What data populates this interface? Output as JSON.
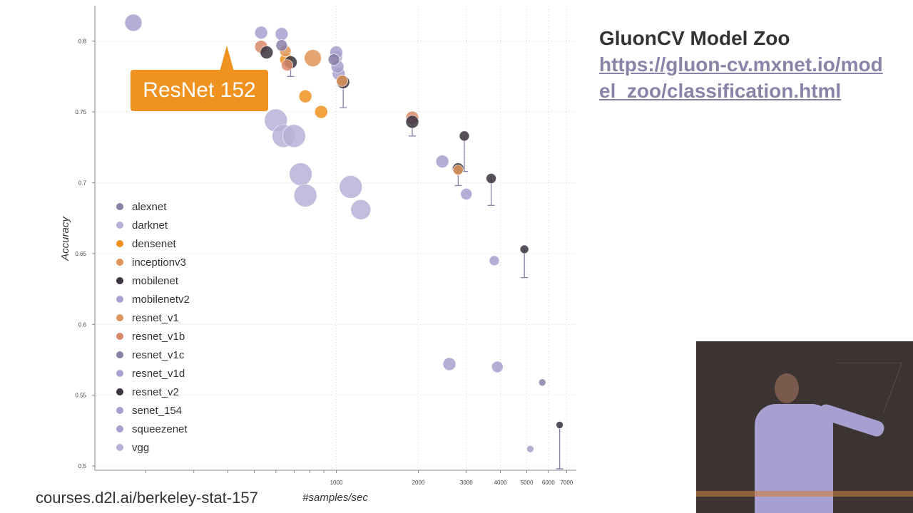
{
  "chart_data": {
    "type": "scatter",
    "title": "",
    "xlabel": "#samples/sec",
    "ylabel": "Accuracy",
    "x_scale": "log",
    "xlim": [
      130,
      7600
    ],
    "ylim": [
      0.497,
      0.825
    ],
    "x_tick_labels": [
      "1000",
      "2000",
      "3000",
      "4000",
      "5000",
      "6000",
      "7000"
    ],
    "x_ticks": [
      1000,
      2000,
      3000,
      4000,
      5000,
      6000,
      7000
    ],
    "y_tick_labels": [
      "0.5",
      "0.55",
      "0.6",
      "0.65",
      "0.7",
      "0.75",
      "0.8"
    ],
    "y_ticks": [
      0.5,
      0.55,
      0.6,
      0.65,
      0.7,
      0.75,
      0.8
    ],
    "grid": true,
    "legend_position": "left",
    "series": [
      {
        "name": "alexnet",
        "color": "#8a7fa8",
        "points": [
          {
            "x": 5700,
            "y": 0.559,
            "size": 5
          }
        ]
      },
      {
        "name": "darknet",
        "color": "#b8b0d6",
        "points": [
          {
            "x": 1000,
            "y": 0.789,
            "size": 9
          }
        ]
      },
      {
        "name": "densenet",
        "color": "#f0921f",
        "points": [
          {
            "x": 655,
            "y": 0.787,
            "size": 9
          },
          {
            "x": 770,
            "y": 0.761,
            "size": 9
          },
          {
            "x": 880,
            "y": 0.75,
            "size": 9
          }
        ]
      },
      {
        "name": "inceptionv3",
        "color": "#e0955a",
        "points": [
          {
            "x": 820,
            "y": 0.788,
            "size": 12
          }
        ]
      },
      {
        "name": "mobilenet",
        "color": "#3a3240",
        "points": [
          {
            "x": 2950,
            "y": 0.733,
            "size": 7
          },
          {
            "x": 3700,
            "y": 0.703,
            "size": 7
          },
          {
            "x": 4900,
            "y": 0.653,
            "size": 6
          },
          {
            "x": 6600,
            "y": 0.529,
            "size": 5
          }
        ]
      },
      {
        "name": "mobilenetv2",
        "color": "#a79fcf",
        "points": [
          {
            "x": 2450,
            "y": 0.715,
            "size": 9
          },
          {
            "x": 3000,
            "y": 0.692,
            "size": 8
          },
          {
            "x": 3800,
            "y": 0.645,
            "size": 7
          },
          {
            "x": 5150,
            "y": 0.512,
            "size": 5
          }
        ]
      },
      {
        "name": "resnet_v1",
        "color": "#e0955a",
        "points": [
          {
            "x": 650,
            "y": 0.793,
            "size": 8
          },
          {
            "x": 1050,
            "y": 0.772,
            "size": 8
          },
          {
            "x": 2800,
            "y": 0.709,
            "size": 7
          }
        ]
      },
      {
        "name": "resnet_v1b",
        "color": "#d98a6a",
        "points": [
          {
            "x": 530,
            "y": 0.796,
            "size": 9
          },
          {
            "x": 1900,
            "y": 0.746,
            "size": 9
          },
          {
            "x": 660,
            "y": 0.783,
            "size": 8
          }
        ]
      },
      {
        "name": "resnet_v1c",
        "color": "#8a7fa8",
        "points": [
          {
            "x": 630,
            "y": 0.797,
            "size": 8
          },
          {
            "x": 980,
            "y": 0.787,
            "size": 8
          }
        ]
      },
      {
        "name": "resnet_v1d",
        "color": "#a79fcf",
        "points": [
          {
            "x": 530,
            "y": 0.806,
            "size": 9
          },
          {
            "x": 630,
            "y": 0.805,
            "size": 9
          },
          {
            "x": 1000,
            "y": 0.792,
            "size": 9
          },
          {
            "x": 1020,
            "y": 0.777,
            "size": 9
          },
          {
            "x": 1010,
            "y": 0.782,
            "size": 9
          }
        ]
      },
      {
        "name": "resnet_v2",
        "color": "#3a3240",
        "points": [
          {
            "x": 555,
            "y": 0.792,
            "size": 9
          },
          {
            "x": 680,
            "y": 0.785,
            "size": 9
          },
          {
            "x": 1060,
            "y": 0.771,
            "size": 9
          },
          {
            "x": 1900,
            "y": 0.743,
            "size": 9
          },
          {
            "x": 2800,
            "y": 0.71,
            "size": 8
          }
        ]
      },
      {
        "name": "senet_154",
        "color": "#a79fcf",
        "points": [
          {
            "x": 180,
            "y": 0.813,
            "size": 12
          }
        ]
      },
      {
        "name": "squeezenet",
        "color": "#a79fcf",
        "points": [
          {
            "x": 2600,
            "y": 0.572,
            "size": 9
          },
          {
            "x": 3900,
            "y": 0.57,
            "size": 8
          }
        ]
      },
      {
        "name": "vgg",
        "color": "#b8b0d6",
        "points": [
          {
            "x": 600,
            "y": 0.744,
            "size": 16
          },
          {
            "x": 640,
            "y": 0.733,
            "size": 16
          },
          {
            "x": 700,
            "y": 0.733,
            "size": 16
          },
          {
            "x": 740,
            "y": 0.706,
            "size": 16
          },
          {
            "x": 770,
            "y": 0.691,
            "size": 16
          },
          {
            "x": 1130,
            "y": 0.697,
            "size": 16
          },
          {
            "x": 1230,
            "y": 0.681,
            "size": 14
          }
        ]
      }
    ],
    "error_bars": [
      {
        "x": 1060,
        "y_top": 0.771,
        "y_bottom": 0.753
      },
      {
        "x": 680,
        "y_top": 0.785,
        "y_bottom": 0.775
      },
      {
        "x": 1900,
        "y_top": 0.743,
        "y_bottom": 0.733
      },
      {
        "x": 2950,
        "y_top": 0.733,
        "y_bottom": 0.708
      },
      {
        "x": 2800,
        "y_top": 0.71,
        "y_bottom": 0.698
      },
      {
        "x": 3700,
        "y_top": 0.703,
        "y_bottom": 0.684
      },
      {
        "x": 4900,
        "y_top": 0.653,
        "y_bottom": 0.633
      },
      {
        "x": 6600,
        "y_top": 0.529,
        "y_bottom": 0.498
      }
    ],
    "annotation": {
      "label": "ResNet 152",
      "color": "#f0921f"
    }
  },
  "sidebar": {
    "title": "GluonCV Model Zoo",
    "link": "https://gluon-cv.mxnet.io/model_zoo/classification.html"
  },
  "footer": {
    "text": "courses.d2l.ai/berkeley-stat-157"
  }
}
